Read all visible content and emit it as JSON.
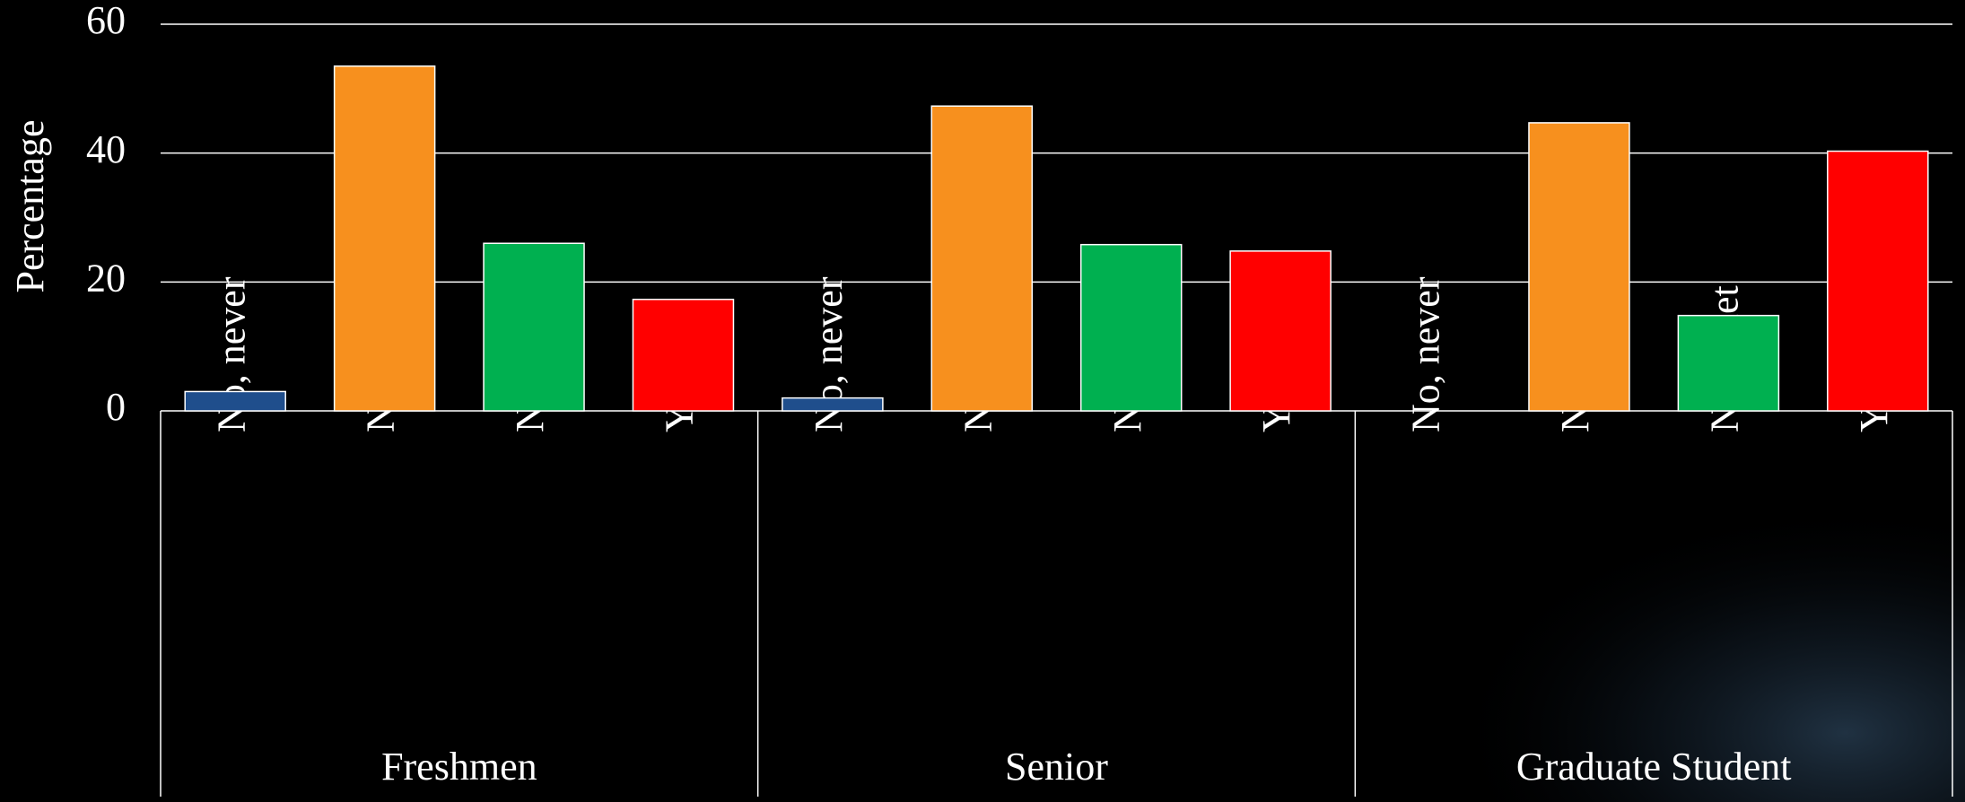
{
  "chart_data": {
    "type": "bar",
    "y_label": "Percentage",
    "categories": [
      "No, never",
      "No, work/family",
      "No, quiet",
      "Yes"
    ],
    "colors": [
      "#1f4e8c",
      "#f7901e",
      "#00b050",
      "#ff0000"
    ],
    "series": [
      {
        "name": "Freshmen",
        "values": [
          3,
          53.5,
          26,
          17.3
        ]
      },
      {
        "name": "Senior",
        "values": [
          2,
          47.3,
          25.8,
          24.8
        ]
      },
      {
        "name": "Graduate Student",
        "values": [
          0,
          44.7,
          14.8,
          40.3
        ]
      }
    ],
    "ylim": [
      0,
      60
    ],
    "yticks": [
      0,
      20,
      40,
      60
    ],
    "grid": true
  }
}
